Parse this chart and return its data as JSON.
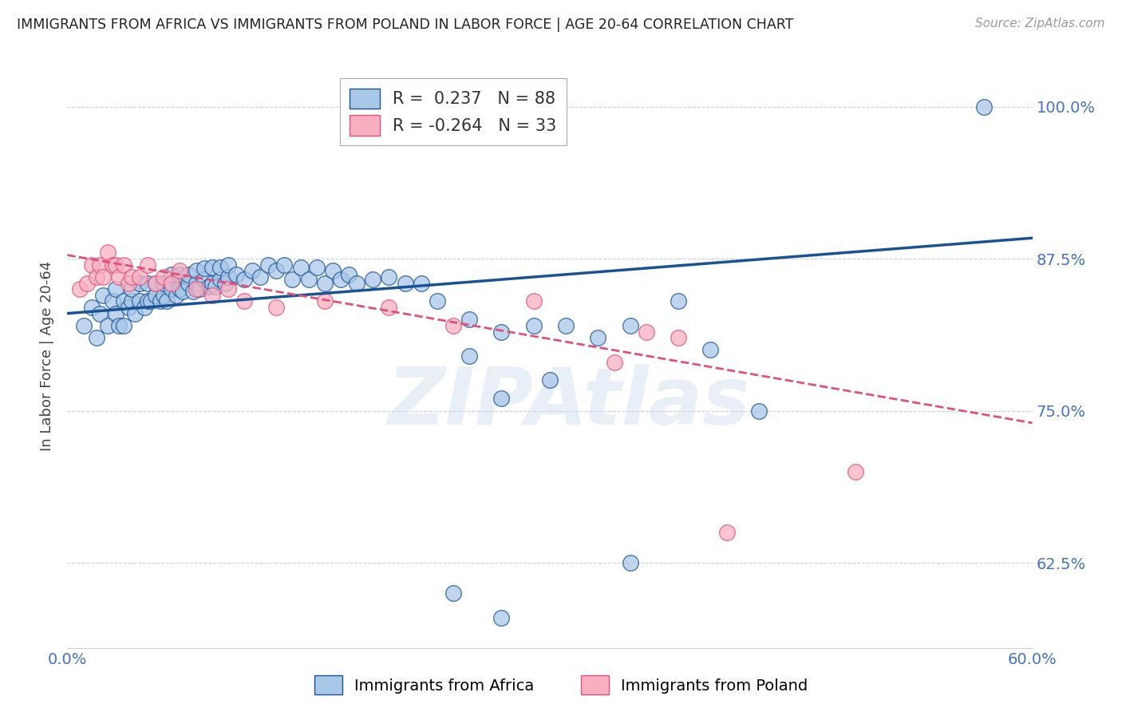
{
  "title": "IMMIGRANTS FROM AFRICA VS IMMIGRANTS FROM POLAND IN LABOR FORCE | AGE 20-64 CORRELATION CHART",
  "source": "Source: ZipAtlas.com",
  "ylabel": "In Labor Force | Age 20-64",
  "watermark": "ZIPAtlas",
  "legend_africa": "Immigrants from Africa",
  "legend_poland": "Immigrants from Poland",
  "africa_R": 0.237,
  "africa_N": 88,
  "poland_R": -0.264,
  "poland_N": 33,
  "xlim": [
    0.0,
    0.6
  ],
  "ylim": [
    0.555,
    1.035
  ],
  "yticks": [
    0.625,
    0.75,
    0.875,
    1.0
  ],
  "ytick_labels": [
    "62.5%",
    "75.0%",
    "87.5%",
    "100.0%"
  ],
  "xticks": [
    0.0,
    0.1,
    0.2,
    0.3,
    0.4,
    0.5,
    0.6
  ],
  "xtick_labels": [
    "0.0%",
    "",
    "",
    "",
    "",
    "",
    "60.0%"
  ],
  "color_africa": "#a8c8e8",
  "color_africa_line": "#1a5296",
  "color_poland": "#f8b0c0",
  "color_poland_line": "#e0507a",
  "tick_color": "#4472c4",
  "title_color": "#222222",
  "africa_scatter_x": [
    0.01,
    0.015,
    0.018,
    0.02,
    0.022,
    0.025,
    0.028,
    0.03,
    0.03,
    0.032,
    0.035,
    0.035,
    0.038,
    0.04,
    0.04,
    0.042,
    0.045,
    0.045,
    0.048,
    0.05,
    0.05,
    0.052,
    0.055,
    0.055,
    0.058,
    0.06,
    0.06,
    0.062,
    0.065,
    0.065,
    0.068,
    0.07,
    0.07,
    0.072,
    0.075,
    0.075,
    0.078,
    0.08,
    0.08,
    0.082,
    0.085,
    0.085,
    0.088,
    0.09,
    0.09,
    0.092,
    0.095,
    0.095,
    0.098,
    0.1,
    0.1,
    0.105,
    0.11,
    0.115,
    0.12,
    0.125,
    0.13,
    0.135,
    0.14,
    0.145,
    0.15,
    0.155,
    0.16,
    0.165,
    0.17,
    0.175,
    0.18,
    0.19,
    0.2,
    0.21,
    0.22,
    0.23,
    0.25,
    0.27,
    0.29,
    0.31,
    0.33,
    0.35,
    0.38,
    0.4,
    0.25,
    0.3,
    0.35,
    0.27,
    0.43,
    0.24,
    0.27,
    0.57
  ],
  "africa_scatter_y": [
    0.82,
    0.835,
    0.81,
    0.83,
    0.845,
    0.82,
    0.84,
    0.83,
    0.85,
    0.82,
    0.84,
    0.82,
    0.835,
    0.84,
    0.85,
    0.83,
    0.84,
    0.855,
    0.835,
    0.84,
    0.855,
    0.84,
    0.845,
    0.855,
    0.84,
    0.845,
    0.855,
    0.84,
    0.85,
    0.862,
    0.845,
    0.85,
    0.862,
    0.848,
    0.855,
    0.862,
    0.848,
    0.855,
    0.865,
    0.85,
    0.858,
    0.867,
    0.852,
    0.855,
    0.868,
    0.852,
    0.858,
    0.868,
    0.855,
    0.86,
    0.87,
    0.862,
    0.858,
    0.865,
    0.86,
    0.87,
    0.865,
    0.87,
    0.858,
    0.868,
    0.858,
    0.868,
    0.855,
    0.865,
    0.858,
    0.862,
    0.855,
    0.858,
    0.86,
    0.855,
    0.855,
    0.84,
    0.825,
    0.815,
    0.82,
    0.82,
    0.81,
    0.82,
    0.84,
    0.8,
    0.795,
    0.775,
    0.625,
    0.76,
    0.75,
    0.6,
    0.58,
    1.0
  ],
  "poland_scatter_x": [
    0.008,
    0.012,
    0.015,
    0.018,
    0.02,
    0.022,
    0.025,
    0.028,
    0.03,
    0.032,
    0.035,
    0.038,
    0.04,
    0.045,
    0.05,
    0.055,
    0.06,
    0.065,
    0.07,
    0.08,
    0.09,
    0.1,
    0.11,
    0.13,
    0.16,
    0.2,
    0.24,
    0.34,
    0.38,
    0.29,
    0.36,
    0.41,
    0.49
  ],
  "poland_scatter_y": [
    0.85,
    0.855,
    0.87,
    0.86,
    0.87,
    0.86,
    0.88,
    0.87,
    0.87,
    0.86,
    0.87,
    0.855,
    0.86,
    0.86,
    0.87,
    0.855,
    0.86,
    0.855,
    0.865,
    0.85,
    0.845,
    0.85,
    0.84,
    0.835,
    0.84,
    0.835,
    0.82,
    0.79,
    0.81,
    0.84,
    0.815,
    0.65,
    0.7
  ],
  "africa_line_x": [
    0.0,
    0.6
  ],
  "africa_line_y": [
    0.83,
    0.892
  ],
  "poland_line_x": [
    0.0,
    0.6
  ],
  "poland_line_y": [
    0.878,
    0.74
  ]
}
